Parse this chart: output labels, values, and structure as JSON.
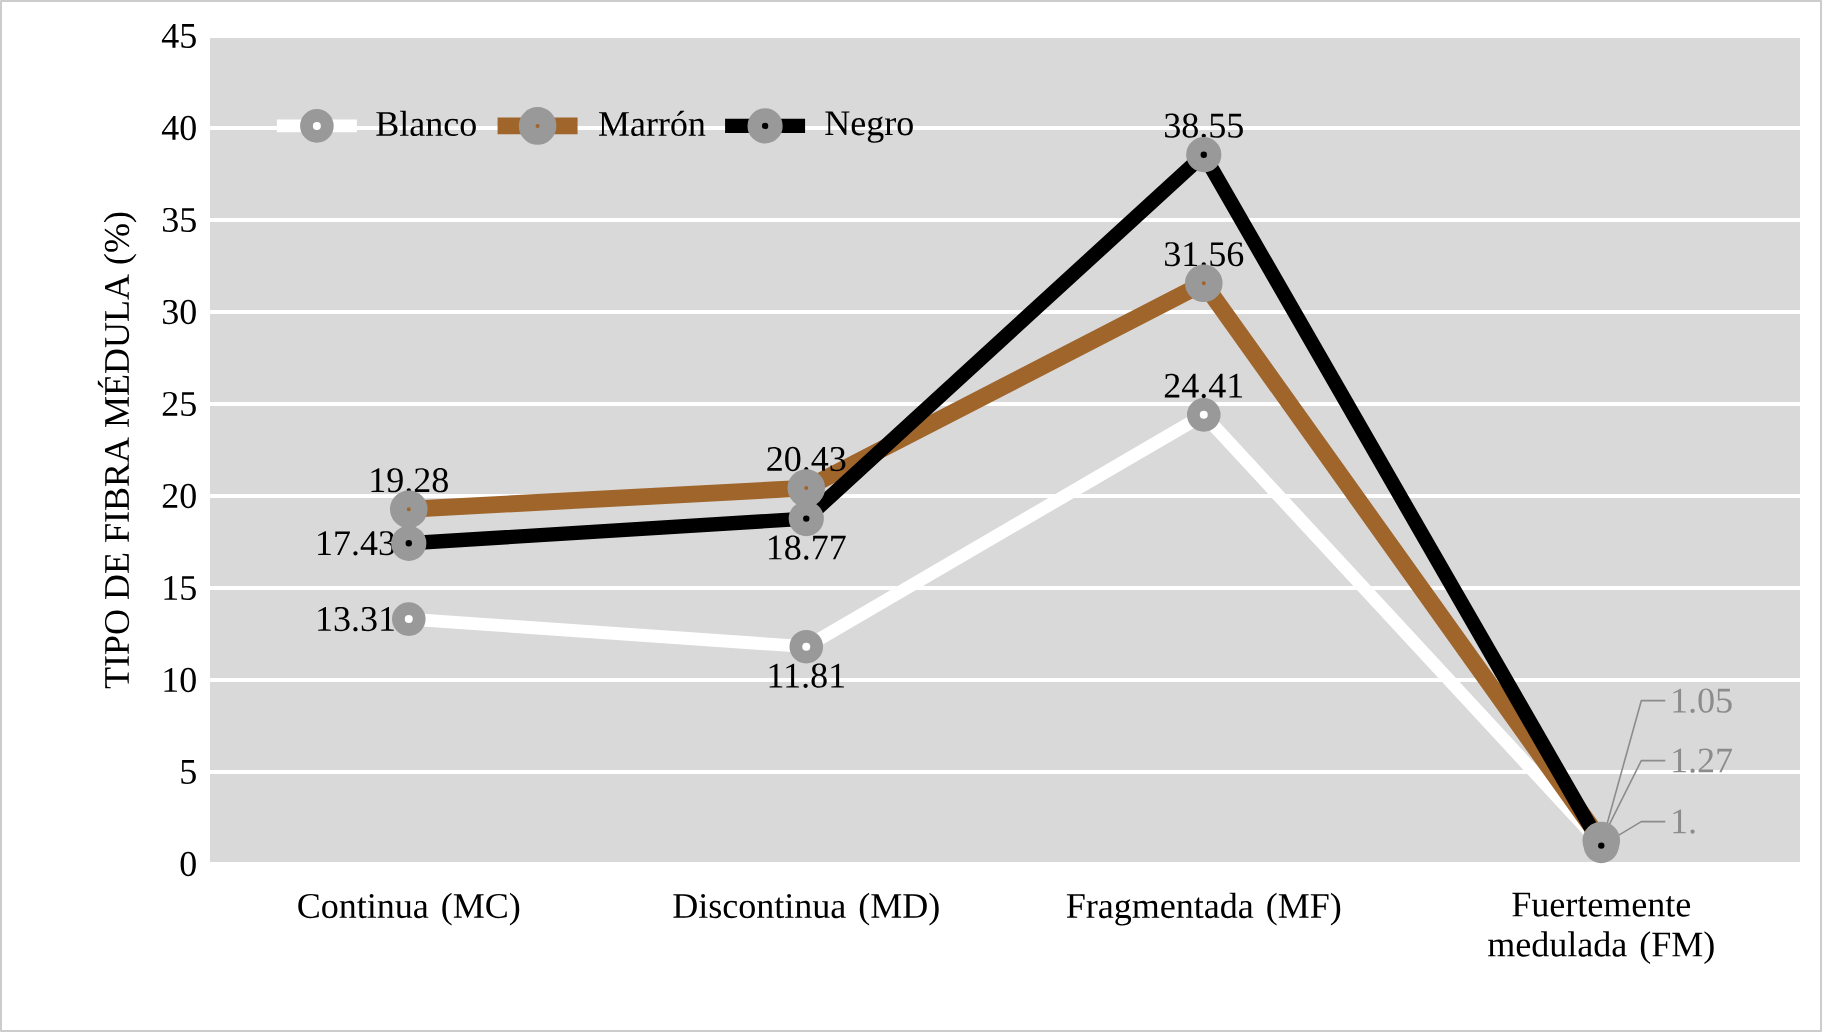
{
  "chart_data": {
    "type": "line",
    "ylabel": "TIPO DE FIBRA MÉDULA (%)",
    "categories": [
      "Continua (MC)",
      "Discontinua (MD)",
      "Fragmentada (MF)",
      "Fuertemente medulada (FM)"
    ],
    "ylim": [
      0,
      45
    ],
    "yticks": [
      0,
      5,
      10,
      15,
      20,
      25,
      30,
      35,
      40,
      45
    ],
    "grid": "y",
    "legend": "top left",
    "marker": "circle",
    "line_style": "solid",
    "series": [
      {
        "name": "Blanco",
        "color": "#ffffff",
        "values": [
          13.31,
          11.81,
          24.41,
          1.05
        ],
        "value_labels": [
          "13.31",
          "11.81",
          "24.41",
          "1.05"
        ]
      },
      {
        "name": "Marrón",
        "color": "#a0652b",
        "values": [
          19.28,
          20.43,
          31.56,
          1.27
        ],
        "value_labels": [
          "19.28",
          "20.43",
          "31.56",
          "1.27"
        ]
      },
      {
        "name": "Negro",
        "color": "#000000",
        "values": [
          17.43,
          18.77,
          38.55,
          1.0
        ],
        "value_labels": [
          "17.43",
          "18.77",
          "38.55",
          "1."
        ]
      }
    ]
  }
}
